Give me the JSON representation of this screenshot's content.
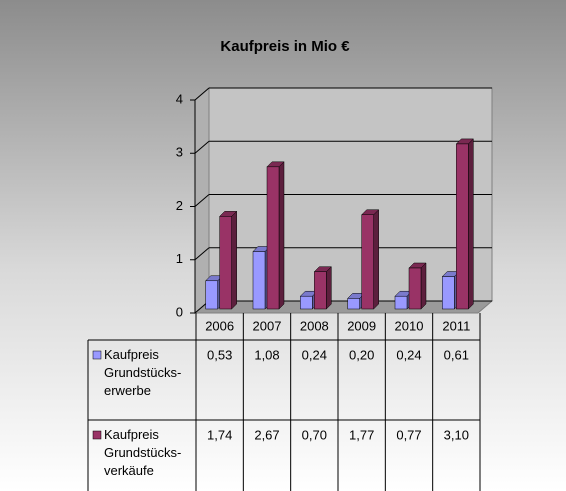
{
  "chart_data": {
    "type": "bar",
    "title": "Kaufpreis in Mio €",
    "categories": [
      "2006",
      "2007",
      "2008",
      "2009",
      "2010",
      "2011"
    ],
    "series": [
      {
        "name": "Kaufpreis Grundstücks-erwerbe",
        "color": "#9999ff",
        "values": [
          0.53,
          1.08,
          0.24,
          0.2,
          0.24,
          0.61
        ],
        "value_labels": [
          "0,53",
          "1,08",
          "0,24",
          "0,20",
          "0,24",
          "0,61"
        ]
      },
      {
        "name": "Kaufpreis Grundstücks-verkäufe",
        "color": "#993366",
        "values": [
          1.74,
          2.67,
          0.7,
          1.77,
          0.77,
          3.1
        ],
        "value_labels": [
          "1,74",
          "2,67",
          "0,70",
          "1,77",
          "0,77",
          "3,10"
        ]
      }
    ],
    "ylim": [
      0,
      4
    ],
    "yticks": [
      0,
      1,
      2,
      3,
      4
    ],
    "grid": true
  }
}
